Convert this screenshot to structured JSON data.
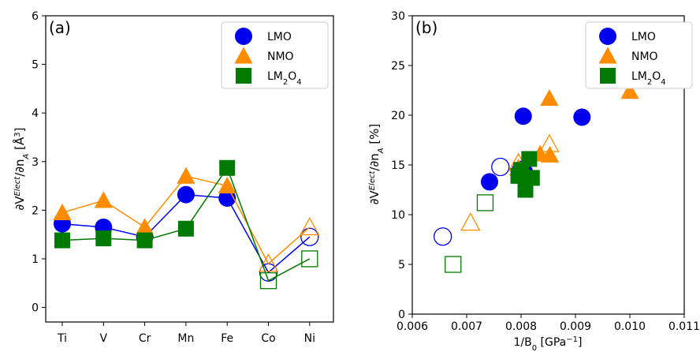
{
  "chart_data": [
    {
      "type": "line",
      "panel_label": "(a)",
      "ylabel": "∂V^Elect/∂n_A [Å^3]",
      "ylabel_parts": {
        "base": "∂V",
        "sup1": "Elect",
        "mid": "/∂n",
        "sub": "A",
        "unit_open": " [Å",
        "sup2": "3",
        "unit_close": "]"
      },
      "categories": [
        "Ti",
        "V",
        "Cr",
        "Mn",
        "Fe",
        "Co",
        "Ni"
      ],
      "ylim": [
        -0.3,
        6
      ],
      "yticks": [
        0,
        1,
        2,
        3,
        4,
        5,
        6
      ],
      "legend_position": "top-right",
      "legend": [
        "LMO",
        "NMO",
        "LM2O4"
      ],
      "series": [
        {
          "name": "LMO",
          "marker": "circle",
          "color": "#0000ee",
          "values": [
            1.72,
            1.65,
            1.45,
            2.32,
            2.25,
            0.72,
            1.45
          ],
          "hollow": [
            false,
            false,
            false,
            false,
            false,
            true,
            true
          ]
        },
        {
          "name": "NMO",
          "marker": "triangle",
          "color": "#ff8c00",
          "values": [
            1.95,
            2.2,
            1.65,
            2.7,
            2.5,
            0.9,
            1.65
          ],
          "hollow": [
            false,
            false,
            false,
            false,
            false,
            true,
            true
          ]
        },
        {
          "name": "LM2O4",
          "marker": "square",
          "color": "#007a00",
          "values": [
            1.38,
            1.42,
            1.38,
            1.62,
            2.87,
            0.55,
            1.0
          ],
          "hollow": [
            false,
            false,
            false,
            false,
            false,
            true,
            true
          ]
        }
      ]
    },
    {
      "type": "scatter",
      "panel_label": "(b)",
      "ylabel": "∂V^Elect/∂n_A [%]",
      "ylabel_parts": {
        "base": "∂V",
        "sup1": "Elect",
        "mid": "/∂n",
        "sub": "A",
        "unit": " [%]"
      },
      "xlabel": "1/B0 [GPa^-1]",
      "xlabel_parts": {
        "base": "1/B",
        "sub": "0",
        "unit_open": " [GPa",
        "sup": "−1",
        "unit_close": "]"
      },
      "xlim": [
        0.006,
        0.011
      ],
      "ylim": [
        0,
        30
      ],
      "xticks": [
        "0.006",
        "0.007",
        "0.008",
        "0.009",
        "0.010",
        "0.011"
      ],
      "yticks": [
        0,
        5,
        10,
        15,
        20,
        25,
        30
      ],
      "legend_position": "top-right",
      "legend": [
        "LMO",
        "NMO",
        "LM2O4"
      ],
      "series": [
        {
          "name": "LMO",
          "marker": "circle",
          "color": "#0000ee",
          "points": [
            {
              "x": 0.00742,
              "y": 13.3,
              "hollow": false
            },
            {
              "x": 0.00804,
              "y": 19.9,
              "hollow": false
            },
            {
              "x": 0.00912,
              "y": 19.8,
              "hollow": false
            },
            {
              "x": 0.00806,
              "y": 14.3,
              "hollow": false
            },
            {
              "x": 0.00762,
              "y": 14.8,
              "hollow": true
            },
            {
              "x": 0.00656,
              "y": 7.8,
              "hollow": true
            },
            {
              "x": 0.008,
              "y": 14.5,
              "hollow": true
            }
          ]
        },
        {
          "name": "NMO",
          "marker": "triangle",
          "color": "#ff8c00",
          "points": [
            {
              "x": 0.00852,
              "y": 21.7,
              "hollow": false
            },
            {
              "x": 0.01,
              "y": 22.4,
              "hollow": false
            },
            {
              "x": 0.00835,
              "y": 16.1,
              "hollow": false
            },
            {
              "x": 0.00853,
              "y": 16.0,
              "hollow": false
            },
            {
              "x": 0.00795,
              "y": 14.7,
              "hollow": false
            },
            {
              "x": 0.00852,
              "y": 17.1,
              "hollow": true
            },
            {
              "x": 0.00707,
              "y": 9.2,
              "hollow": true
            },
            {
              "x": 0.00795,
              "y": 15.2,
              "hollow": true
            }
          ]
        },
        {
          "name": "LM2O4",
          "marker": "square",
          "color": "#007a00",
          "points": [
            {
              "x": 0.00815,
              "y": 15.6,
              "hollow": false
            },
            {
              "x": 0.0082,
              "y": 13.7,
              "hollow": false
            },
            {
              "x": 0.00808,
              "y": 12.5,
              "hollow": false
            },
            {
              "x": 0.00795,
              "y": 13.9,
              "hollow": false
            },
            {
              "x": 0.008,
              "y": 14.5,
              "hollow": false
            },
            {
              "x": 0.00734,
              "y": 11.2,
              "hollow": true
            },
            {
              "x": 0.00675,
              "y": 5.0,
              "hollow": true
            }
          ]
        }
      ]
    }
  ]
}
